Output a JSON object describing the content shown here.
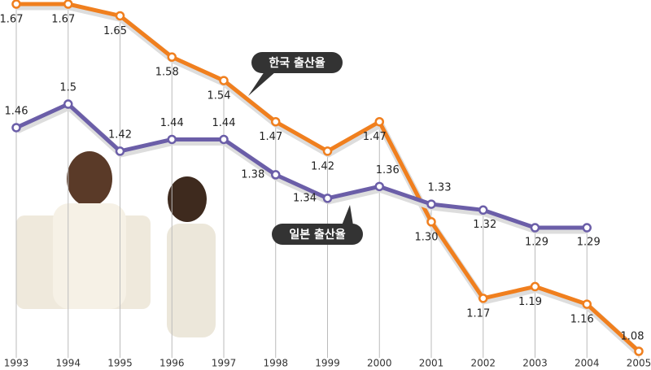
{
  "chart_data": {
    "type": "line",
    "categories": [
      "1993",
      "1994",
      "1995",
      "1996",
      "1997",
      "1998",
      "1999",
      "2000",
      "2001",
      "2002",
      "2003",
      "2004",
      "2005"
    ],
    "series": [
      {
        "name": "한국 출산율",
        "color": "#f07f1e",
        "values": [
          1.67,
          1.67,
          1.65,
          1.58,
          1.54,
          1.47,
          1.42,
          1.47,
          1.3,
          1.17,
          1.19,
          1.16,
          1.08
        ],
        "value_labels": [
          "1.67",
          "1.67",
          "1.65",
          "1.58",
          "1.54",
          "1.47",
          "1.42",
          "1.47",
          "1.30",
          "1.17",
          "1.19",
          "1.16",
          "1.08"
        ]
      },
      {
        "name": "일본 출산율",
        "color": "#6b5ea8",
        "values": [
          1.46,
          1.5,
          1.42,
          1.44,
          1.44,
          1.38,
          1.34,
          1.36,
          1.33,
          1.32,
          1.29,
          1.29,
          null
        ],
        "value_labels": [
          "1.46",
          "1.5",
          "1.42",
          "1.44",
          "1.44",
          "1.38",
          "1.34",
          "1.36",
          "1.33",
          "1.32",
          "1.29",
          "1.29",
          null
        ]
      }
    ]
  }
}
